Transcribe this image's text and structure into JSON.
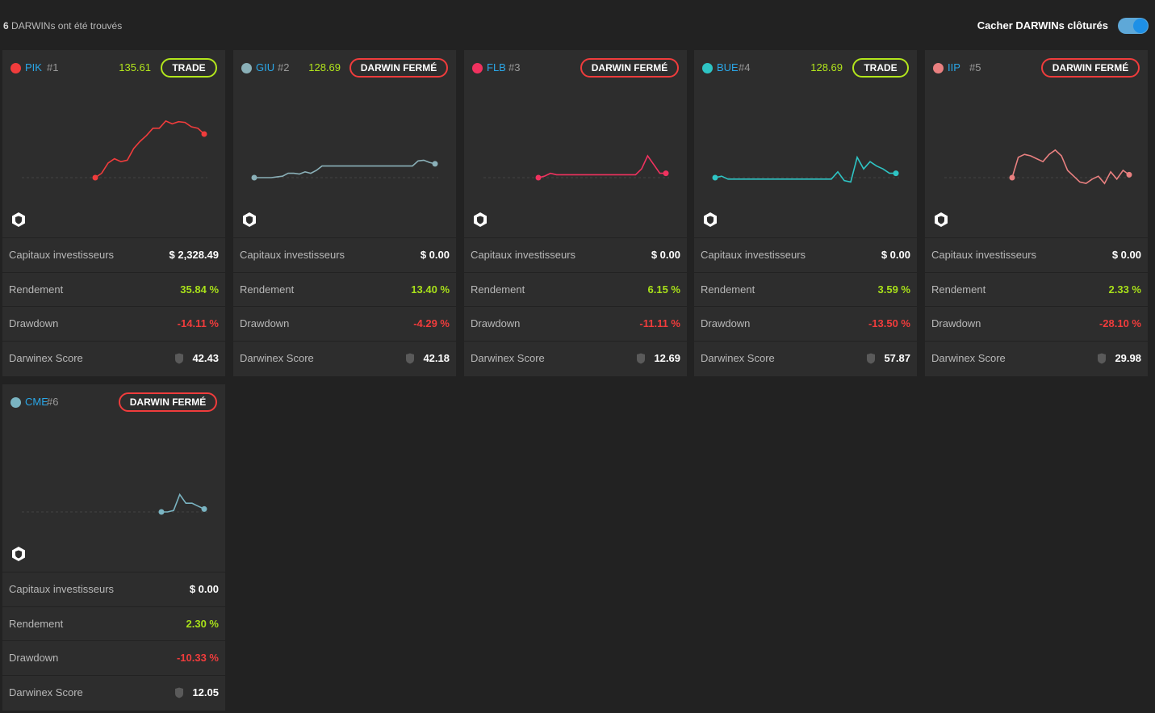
{
  "header": {
    "count_number": "6",
    "count_text": "DARWINs ont été trouvés",
    "hide_closed_label": "Cacher DARWINs clôturés",
    "hide_closed_on": true,
    "accent_color": "#1e90e6"
  },
  "labels": {
    "investors": "Capitaux investisseurs",
    "return": "Rendement",
    "drawdown": "Drawdown",
    "score": "Darwinex Score"
  },
  "colors": {
    "positive": "#a8e01a",
    "negative": "#f03c3c",
    "trade_border": "#b3e61c",
    "closed_border": "#f03c3c",
    "ticker": "#2aa7e8"
  },
  "cards": [
    {
      "ticker": "PIK",
      "rank": "#1",
      "price": "135.61",
      "button": "TRADE",
      "button_type": "trade",
      "dot_color": "#f03c3c",
      "line_color": "#f03c3c",
      "investors": "$ 2,328.49",
      "return": "35.84 %",
      "drawdown": "-14.11 %",
      "score": "42.43",
      "score_icon": "shield-score-icon",
      "series": [
        50,
        56,
        70,
        76,
        72,
        74,
        90,
        100,
        108,
        118,
        118,
        128,
        124,
        127,
        126,
        120,
        118,
        110
      ]
    },
    {
      "ticker": "GIU",
      "rank": "#2",
      "price": "128.69",
      "button": "DARWIN FERMÉ",
      "button_type": "closed",
      "dot_color": "#8ab0b8",
      "line_color": "#8ab0b8",
      "investors": "$ 0.00",
      "return": "13.40 %",
      "drawdown": "-4.29 %",
      "score": "42.18",
      "score_icon": "shield-score-icon",
      "series": [
        50,
        50,
        50,
        50,
        51,
        52,
        56,
        56,
        55,
        58,
        56,
        60,
        66,
        66,
        66,
        66,
        66,
        66,
        66,
        66,
        66,
        66,
        66,
        66,
        66,
        66,
        66,
        66,
        66,
        73,
        74,
        71,
        69
      ]
    },
    {
      "ticker": "FLB",
      "rank": "#3",
      "price": "",
      "button": "DARWIN FERMÉ",
      "button_type": "closed",
      "dot_color": "#f0325f",
      "line_color": "#f0325f",
      "investors": "$ 0.00",
      "return": "6.15 %",
      "drawdown": "-11.11 %",
      "score": "12.69",
      "score_icon": "shield-score-icon",
      "series": [
        50,
        52,
        56,
        54,
        54,
        54,
        54,
        54,
        54,
        54,
        54,
        54,
        54,
        54,
        54,
        54,
        54,
        62,
        80,
        68,
        56,
        56
      ]
    },
    {
      "ticker": "BUE",
      "rank": "#4",
      "price": "128.69",
      "button": "TRADE",
      "button_type": "trade",
      "dot_color": "#2ec4c4",
      "line_color": "#2ec4c4",
      "investors": "$ 0.00",
      "return": "3.59 %",
      "drawdown": "-13.50 %",
      "score": "57.87",
      "score_icon": "shield-score-icon",
      "series": [
        50,
        52,
        48,
        48,
        48,
        48,
        48,
        48,
        48,
        48,
        48,
        48,
        48,
        48,
        48,
        48,
        48,
        48,
        48,
        58,
        46,
        44,
        78,
        62,
        72,
        66,
        62,
        56,
        56
      ]
    },
    {
      "ticker": "IIP",
      "rank": "#5",
      "price": "",
      "button": "DARWIN FERMÉ",
      "button_type": "closed",
      "dot_color": "#e98080",
      "line_color": "#e98080",
      "investors": "$ 0.00",
      "return": "2.33 %",
      "drawdown": "-28.10 %",
      "score": "29.98",
      "score_icon": "shield-score-icon",
      "series": [
        50,
        78,
        82,
        80,
        76,
        72,
        82,
        88,
        80,
        60,
        52,
        44,
        42,
        48,
        52,
        42,
        58,
        48,
        60,
        54
      ]
    },
    {
      "ticker": "CME",
      "rank": "#6",
      "price": "",
      "button": "DARWIN FERMÉ",
      "button_type": "closed",
      "dot_color": "#7ab4c2",
      "line_color": "#7ab4c2",
      "investors": "$ 0.00",
      "return": "2.30 %",
      "drawdown": "-10.33 %",
      "score": "12.05",
      "score_icon": "shield-score-icon",
      "series": [
        50,
        50,
        52,
        74,
        62,
        62,
        58,
        54
      ]
    }
  ]
}
